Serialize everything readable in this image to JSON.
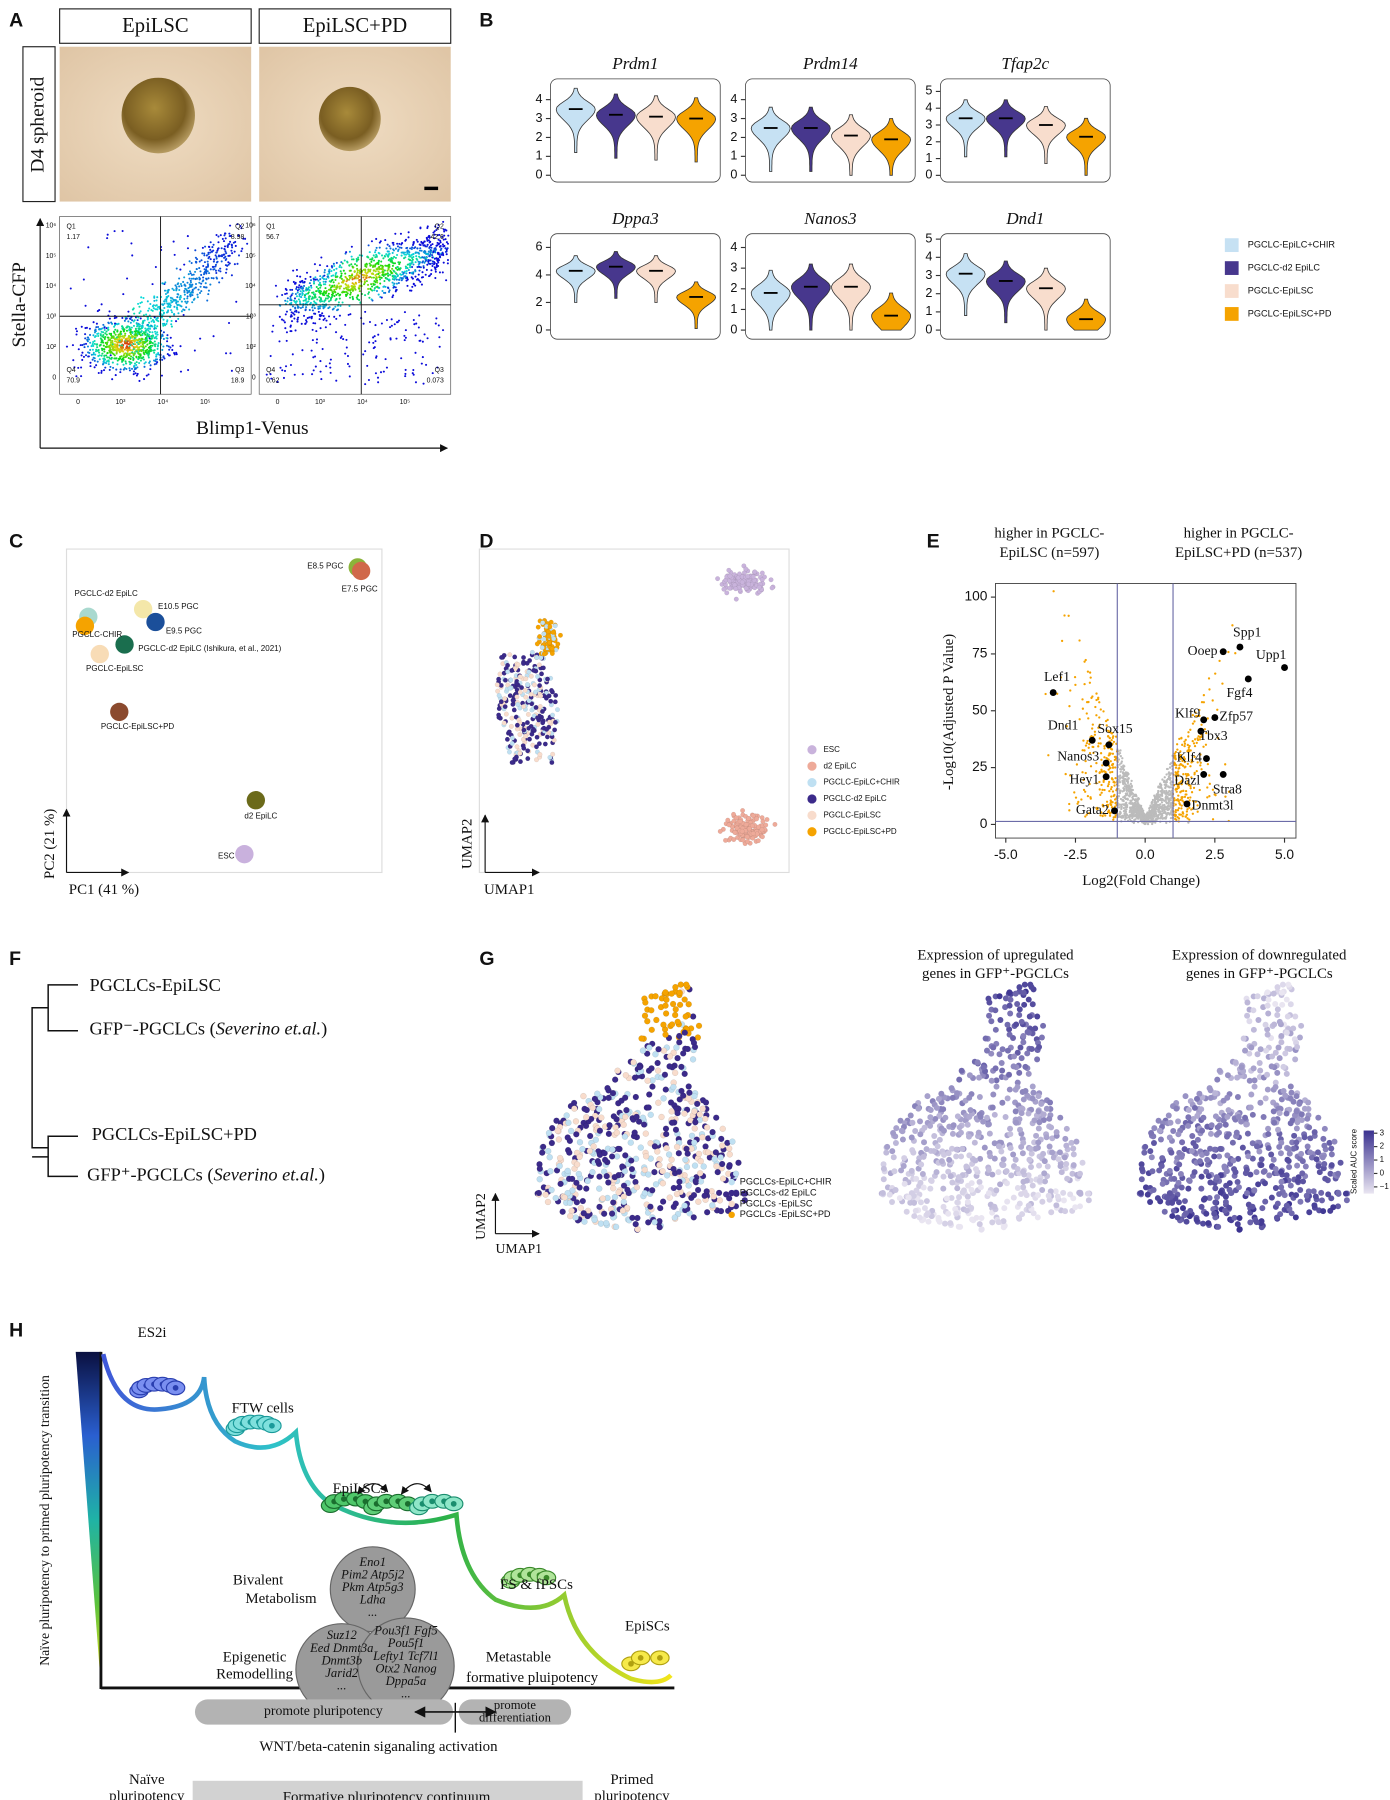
{
  "figure": {
    "panel_labels": [
      "A",
      "B",
      "C",
      "D",
      "E",
      "F",
      "G",
      "H"
    ],
    "a": {
      "columns": [
        "EpiLSC",
        "EpiLSC+PD"
      ],
      "row_label": "D4 spheroid",
      "y_axis": "Stella-CFP",
      "x_axis": "Blimp1-Venus",
      "y_tick_labels": [
        "10⁶",
        "10⁵",
        "10⁴",
        "10³",
        "10²",
        "0"
      ],
      "x_tick_labels": [
        "0",
        "10³",
        "10⁴",
        "10⁵"
      ],
      "plots": [
        {
          "quadrants": [
            "Q1",
            "Q2",
            "Q3",
            "Q4"
          ],
          "percentages": [
            1.17,
            8.98,
            18.9,
            70.9
          ]
        },
        {
          "quadrants": [
            "Q1",
            "Q2",
            "Q3",
            "Q4"
          ],
          "percentages": [
            56.7,
            42.6,
            0.073,
            0.62
          ]
        }
      ]
    },
    "b": {
      "groups": [
        {
          "name": "PGCLC-EpiLC+CHIR",
          "color": "#c6e1f3"
        },
        {
          "name": "PGCLC-d2 EpiLC",
          "color": "#47378d"
        },
        {
          "name": "PGCLC-EpiLSC",
          "color": "#f8ddcd"
        },
        {
          "name": "PGCLC-EpiLSC+PD",
          "color": "#f5a300"
        }
      ],
      "genes": [
        {
          "name": "Prdm1",
          "ylim": [
            -0.36,
            5.1
          ],
          "yticks": [
            0,
            1,
            2,
            3,
            4
          ],
          "medians": [
            3.5,
            3.2,
            3.1,
            3.0
          ]
        },
        {
          "name": "Prdm14",
          "ylim": [
            -0.36,
            5.1
          ],
          "yticks": [
            0,
            1,
            2,
            3,
            4
          ],
          "medians": [
            2.5,
            2.5,
            2.1,
            1.9
          ]
        },
        {
          "name": "Tfap2c",
          "ylim": [
            -0.4,
            5.75
          ],
          "yticks": [
            0,
            1,
            2,
            3,
            4,
            5
          ],
          "medians": [
            3.4,
            3.4,
            3.0,
            2.3
          ]
        },
        {
          "name": "Dppa3",
          "ylim": [
            -0.67,
            7
          ],
          "yticks": [
            0,
            2,
            4,
            6
          ],
          "medians": [
            4.3,
            4.6,
            4.3,
            2.4
          ]
        },
        {
          "name": "Nanos3",
          "ylim": [
            -0.44,
            4.67
          ],
          "yticks": [
            0,
            1,
            2,
            3,
            4
          ],
          "medians": [
            1.8,
            2.1,
            2.1,
            0.7
          ]
        },
        {
          "name": "Dnd1",
          "ylim": [
            -0.5,
            5.3
          ],
          "yticks": [
            0,
            1,
            2,
            3,
            4,
            5
          ],
          "medians": [
            3.1,
            2.7,
            2.3,
            0.6
          ]
        }
      ]
    },
    "c": {
      "x_axis": "PC1 (41 %)",
      "y_axis": "PC2 (21 %)",
      "xlim": [
        0,
        100
      ],
      "ylim": [
        0,
        100
      ],
      "points": [
        {
          "name": "PGCLC-d2 EpiLC",
          "color": "#a9d9cf",
          "x": 6.3,
          "y": 79.6
        },
        {
          "name": "PGCLC-CHIR",
          "color": "#f5a300",
          "x": 5.2,
          "y": 76.8
        },
        {
          "name": "E10.5 PGC",
          "color": "#f4e7a9",
          "x": 24,
          "y": 82
        },
        {
          "name": "E9.5 PGC",
          "color": "#1b4f9a",
          "x": 28,
          "y": 78
        },
        {
          "name": "PGCLC-d2 EpiLC (Ishikura, et al., 2021)",
          "color": "#1a6e4e",
          "x": 18,
          "y": 71
        },
        {
          "name": "PGCLC-EpiLSC",
          "color": "#f8dcb6",
          "x": 10,
          "y": 68
        },
        {
          "name": "PGCLC-EpiLSC+PD",
          "color": "#8b4a2e",
          "x": 16.3,
          "y": 50
        },
        {
          "name": "d2 EpiLC",
          "color": "#6b6a1a",
          "x": 60.4,
          "y": 22.5
        },
        {
          "name": "ESC",
          "color": "#c9b1dd",
          "x": 56.7,
          "y": 5.7
        },
        {
          "name": "E8.5 PGC",
          "color": "#8ab33a",
          "x": 93.3,
          "y": 95
        },
        {
          "name": "E7.5 PGC",
          "color": "#d0684a",
          "x": 94.4,
          "y": 93.9
        }
      ]
    },
    "d": {
      "x_axis": "UMAP1",
      "y_axis": "UMAP2",
      "legend": [
        {
          "name": "ESC",
          "color": "#c9b3dc"
        },
        {
          "name": "d2 EpiLC",
          "color": "#eeaa99"
        },
        {
          "name": "PGCLC-EpiLC+CHIR",
          "color": "#bfe0f2"
        },
        {
          "name": "PGCLC-d2 EpiLC",
          "color": "#3b2a8a"
        },
        {
          "name": "PGCLC-EpiLSC",
          "color": "#f8dccc"
        },
        {
          "name": "PGCLC-EpiLSC+PD",
          "color": "#f5a300"
        }
      ]
    },
    "e": {
      "type": "scatter",
      "x_axis": "Log2(Fold Change)",
      "y_axis": "-Log10(Adjusted P Value)",
      "annotations": [
        [
          "higher in PGCLC-",
          "EpiLSC (n=597)"
        ],
        [
          "higher in PGCLC-",
          "EpiLSC+PD (n=537)"
        ]
      ],
      "xlim": [
        -5.37,
        5.41
      ],
      "ylim": [
        -6,
        106
      ],
      "xticks": [
        {
          "value": -5,
          "label": "-5.0"
        },
        {
          "value": -2.5,
          "label": "-2.5"
        },
        {
          "value": 0,
          "label": "0.0"
        },
        {
          "value": 2.5,
          "label": "2.5"
        },
        {
          "value": 5,
          "label": "5.0"
        }
      ],
      "yticks": [
        0,
        25,
        50,
        75,
        100
      ],
      "thresholds": {
        "log2fc": [
          -1,
          1
        ],
        "padj": 1.3
      },
      "genes": [
        {
          "name": "Lef1",
          "x": -3.3,
          "y": 58
        },
        {
          "name": "Dnd1",
          "x": -1.9,
          "y": 37
        },
        {
          "name": "Sox15",
          "x": -1.3,
          "y": 35
        },
        {
          "name": "Nanos3",
          "x": -1.4,
          "y": 27
        },
        {
          "name": "Hey1",
          "x": -1.4,
          "y": 21
        },
        {
          "name": "Gata2",
          "x": -1.1,
          "y": 6
        },
        {
          "name": "Spp1",
          "x": 3.4,
          "y": 78
        },
        {
          "name": "Ooep",
          "x": 2.8,
          "y": 76
        },
        {
          "name": "Upp1",
          "x": 5.0,
          "y": 69
        },
        {
          "name": "Fgf4",
          "x": 3.7,
          "y": 64
        },
        {
          "name": "Klf9",
          "x": 2.1,
          "y": 46
        },
        {
          "name": "Zfp57",
          "x": 2.5,
          "y": 47
        },
        {
          "name": "Tbx3",
          "x": 2.0,
          "y": 41
        },
        {
          "name": "Klf4",
          "x": 2.2,
          "y": 29
        },
        {
          "name": "Dazl",
          "x": 2.1,
          "y": 22
        },
        {
          "name": "Stra8",
          "x": 2.8,
          "y": 22
        },
        {
          "name": "Dnmt3l",
          "x": 1.5,
          "y": 9
        }
      ]
    },
    "f": {
      "leaves": [
        {
          "prefix": "PGCLCs-EpiLSC",
          "italic": "",
          "suffix": ""
        },
        {
          "prefix": "GFP⁻-PGCLCs (",
          "italic": "Severino et.al.",
          "suffix": ")"
        },
        {
          "prefix": "PGCLCs-EpiLSC+PD",
          "italic": "",
          "suffix": ""
        },
        {
          "prefix": "GFP⁺-PGCLCs (",
          "italic": "Severino et.al.",
          "suffix": ")"
        }
      ]
    },
    "g": {
      "x_axis": "UMAP1",
      "y_axis": "UMAP2",
      "legend": [
        {
          "name": "PGCLCs-EpiLC+CHIR",
          "color": "#bfe0f2"
        },
        {
          "name": "PGCLCs-d2 EpiLC",
          "color": "#3b2a8a"
        },
        {
          "name": "PGCLCs -EpiLSC",
          "color": "#f8dccc"
        },
        {
          "name": "PGCLCs -EpiLSC+PD",
          "color": "#f5a300"
        }
      ],
      "titles": [
        [
          "Expression of upregulated",
          "genes in GFP⁺-PGCLCs"
        ],
        [
          "Expression of downregulated",
          "genes in GFP⁺-PGCLCs"
        ]
      ],
      "colorbar": {
        "label": "Scaled AUC score",
        "lim": [
          -1.5,
          3.2
        ],
        "ticks": [
          3,
          2,
          1,
          0,
          {
            "value": -1,
            "label": "−1"
          }
        ],
        "colors": [
          "#e9e5f1",
          "#3b3290"
        ]
      }
    },
    "h": {
      "y_axis": "Naïve pluripotency to primed pluripotency transition",
      "stages": [
        "ES2i",
        "FTW cells",
        "EpiLSCs",
        "FS & fPSCs",
        "EpiSCs"
      ],
      "modules": [
        {
          "title": [
            "Bivalent",
            "Metabolism"
          ],
          "genes": [
            "Eno1",
            "Pim2 Atp5j2",
            "Pkm Atp5g3",
            "Ldha",
            "..."
          ]
        },
        {
          "title": [
            "Epigenetic",
            "Remodelling"
          ],
          "genes": [
            "Suz12",
            "Eed Dnmt3a",
            "Dnmt3b",
            "Jarid2",
            "..."
          ]
        },
        {
          "title": [
            "Metastable",
            "formative pluipotency"
          ],
          "genes": [
            "Pou3f1 Fgf5",
            "Pou5f1",
            "Lefty1 Tcf7l1",
            "Otx2 Nanog",
            "Dppa5a",
            "..."
          ]
        }
      ],
      "bars": [
        [
          "promote pluripotency"
        ],
        [
          "promote",
          "differentiation"
        ]
      ],
      "signal": "WNT/beta-catenin siganaling activation",
      "phases": [
        [
          "Naïve",
          "pluripotency"
        ],
        [
          "Formative pluripotency continuum"
        ],
        [
          "Primed",
          "pluripotency"
        ]
      ]
    }
  }
}
